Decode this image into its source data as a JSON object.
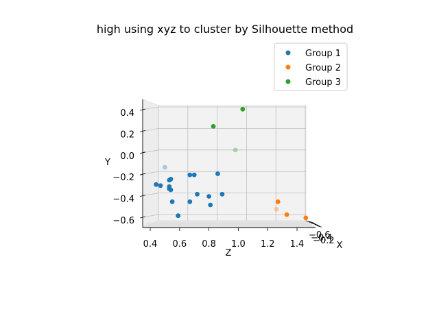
{
  "chart_data": {
    "type": "scatter",
    "title": "high using xyz to cluster by Silhouette method",
    "xlabel": "X",
    "ylabel": "Y",
    "zlabel": "Z",
    "z_ticks": [
      "0.4",
      "0.6",
      "0.8",
      "1.0",
      "1.2",
      "1.4"
    ],
    "y_ticks": [
      "0.4",
      "0.2",
      "0.0",
      "−0.2",
      "−0.4",
      "−0.6"
    ],
    "x_ticks_overlap": [
      "−0.6",
      "−0.4",
      "−0.2"
    ],
    "zlim": [
      0.35,
      1.45
    ],
    "ylim": [
      -0.65,
      0.45
    ],
    "legend": {
      "placement": "upper-right"
    },
    "grid": true,
    "series": [
      {
        "name": "Group 1",
        "color": "#1f77b4",
        "points": [
          {
            "z": 0.5,
            "y": -0.11,
            "faded": true
          },
          {
            "z": 0.54,
            "y": -0.22
          },
          {
            "z": 0.53,
            "y": -0.23
          },
          {
            "z": 0.44,
            "y": -0.27
          },
          {
            "z": 0.47,
            "y": -0.28
          },
          {
            "z": 0.53,
            "y": -0.29
          },
          {
            "z": 0.53,
            "y": -0.31
          },
          {
            "z": 0.54,
            "y": -0.32
          },
          {
            "z": 0.55,
            "y": -0.43
          },
          {
            "z": 0.59,
            "y": -0.56
          },
          {
            "z": 0.67,
            "y": -0.18
          },
          {
            "z": 0.7,
            "y": -0.18
          },
          {
            "z": 0.72,
            "y": -0.36
          },
          {
            "z": 0.67,
            "y": -0.43
          },
          {
            "z": 0.8,
            "y": -0.38
          },
          {
            "z": 0.81,
            "y": -0.46
          },
          {
            "z": 0.86,
            "y": -0.17
          },
          {
            "z": 0.89,
            "y": -0.36
          }
        ]
      },
      {
        "name": "Group 2",
        "color": "#ff7f0e",
        "points": [
          {
            "z": 1.27,
            "y": -0.43
          },
          {
            "z": 1.26,
            "y": -0.5,
            "faded": true
          },
          {
            "z": 1.33,
            "y": -0.55
          },
          {
            "z": 1.46,
            "y": -0.58
          }
        ]
      },
      {
        "name": "Group 3",
        "color": "#2ca02c",
        "points": [
          {
            "z": 1.03,
            "y": 0.43
          },
          {
            "z": 0.83,
            "y": 0.27
          },
          {
            "z": 0.98,
            "y": 0.05,
            "faded": true
          }
        ]
      }
    ]
  }
}
